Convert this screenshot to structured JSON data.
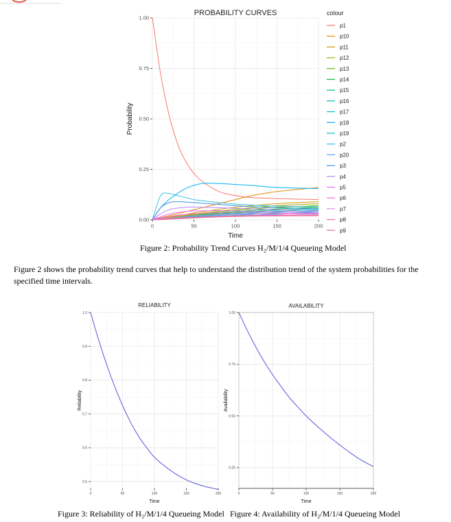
{
  "figure2": {
    "caption": "Figure 2: Probability Trend Curves H₂/M/1/4 Queueing Model",
    "chart": {
      "type": "line",
      "title": "PROBABILITY CURVES",
      "xlabel": "Time",
      "ylabel": "Probability",
      "xticks": [
        "0",
        "50",
        "100",
        "150",
        "200"
      ],
      "yticks": [
        "0.00",
        "0.25",
        "0.50",
        "0.75",
        "1.00"
      ],
      "legend_title": "colour",
      "legend": [
        "p1",
        "p10",
        "p11",
        "p12",
        "p13",
        "p14",
        "p15",
        "p16",
        "p17",
        "p18",
        "p19",
        "p2",
        "p20",
        "p3",
        "p4",
        "p5",
        "p6",
        "p7",
        "p8",
        "p9"
      ],
      "colors": [
        "#F8766D",
        "#E58700",
        "#C99800",
        "#A3A500",
        "#6BB100",
        "#00BA38",
        "#00BF7D",
        "#00C0AF",
        "#00BCD8",
        "#00B0F6",
        "#00BFC4",
        "#35C1E6",
        "#619CFF",
        "#3D8FE8",
        "#B983FF",
        "#E76BF3",
        "#FD61D1",
        "#D48CEA",
        "#FF67A4",
        "#F06C8A"
      ],
      "grid": true,
      "legend_position": "right"
    }
  },
  "paragraph": "Figure 2 shows the probability trend curves that help to understand the distribution trend of the system probabilities for the specified time intervals.",
  "figure3": {
    "caption": "Figure 3: Reliability of H₂/M/1/4 Queueing Model",
    "chart": {
      "type": "line",
      "title": "RELIABILITY",
      "xlabel": "Time",
      "ylabel": "Reliability",
      "xticks": [
        "0",
        "50",
        "100",
        "150",
        "200"
      ],
      "yticks": [
        "0.5",
        "0.6",
        "0.7",
        "0.8",
        "0.9",
        "1.0"
      ],
      "color": "#5555DD",
      "grid": true
    }
  },
  "figure4": {
    "caption": "Figure 4: Availability of H₂/M/1/4 Queueing Model",
    "chart": {
      "type": "line",
      "title": "AVAILABILITY",
      "xlabel": "Time",
      "ylabel": "Availability",
      "xticks": [
        "0",
        "50",
        "100",
        "150",
        "200"
      ],
      "yticks": [
        "0.25",
        "0.50",
        "0.75",
        "1.00"
      ],
      "color": "#5555DD",
      "grid": true
    }
  },
  "chart_data": [
    {
      "type": "line",
      "title": "PROBABILITY CURVES",
      "xlabel": "Time",
      "ylabel": "Probability",
      "xlim": [
        0,
        200
      ],
      "ylim": [
        0,
        1
      ],
      "x": [
        0,
        10,
        20,
        30,
        40,
        50,
        60,
        80,
        100,
        120,
        150,
        200
      ],
      "series": [
        {
          "name": "p1",
          "values": [
            1.0,
            0.72,
            0.52,
            0.38,
            0.29,
            0.23,
            0.19,
            0.14,
            0.12,
            0.11,
            0.105,
            0.1
          ]
        },
        {
          "name": "p10",
          "values": [
            0.0,
            0.01,
            0.02,
            0.03,
            0.04,
            0.05,
            0.06,
            0.08,
            0.1,
            0.12,
            0.14,
            0.16
          ]
        },
        {
          "name": "p11",
          "values": [
            0.0,
            0.006,
            0.012,
            0.02,
            0.027,
            0.034,
            0.04,
            0.052,
            0.062,
            0.07,
            0.08,
            0.09
          ]
        },
        {
          "name": "p12",
          "values": [
            0.0,
            0.005,
            0.01,
            0.016,
            0.022,
            0.028,
            0.033,
            0.043,
            0.052,
            0.06,
            0.07,
            0.08
          ]
        },
        {
          "name": "p13",
          "values": [
            0.0,
            0.004,
            0.009,
            0.014,
            0.019,
            0.024,
            0.029,
            0.038,
            0.046,
            0.053,
            0.062,
            0.07
          ]
        },
        {
          "name": "p14",
          "values": [
            0.0,
            0.004,
            0.008,
            0.012,
            0.017,
            0.021,
            0.025,
            0.033,
            0.04,
            0.046,
            0.054,
            0.062
          ]
        },
        {
          "name": "p15",
          "values": [
            0.0,
            0.003,
            0.007,
            0.011,
            0.015,
            0.019,
            0.022,
            0.029,
            0.035,
            0.041,
            0.048,
            0.056
          ]
        },
        {
          "name": "p16",
          "values": [
            0.0,
            0.003,
            0.006,
            0.01,
            0.013,
            0.016,
            0.02,
            0.026,
            0.031,
            0.036,
            0.043,
            0.05
          ]
        },
        {
          "name": "p17",
          "values": [
            0.0,
            0.003,
            0.005,
            0.008,
            0.011,
            0.014,
            0.017,
            0.022,
            0.027,
            0.031,
            0.037,
            0.044
          ]
        },
        {
          "name": "p18",
          "values": [
            0.0,
            0.06,
            0.1,
            0.13,
            0.155,
            0.17,
            0.18,
            0.18,
            0.175,
            0.17,
            0.16,
            0.155
          ]
        },
        {
          "name": "p19",
          "values": [
            0.0,
            0.002,
            0.004,
            0.007,
            0.009,
            0.012,
            0.014,
            0.018,
            0.022,
            0.026,
            0.031,
            0.037
          ]
        },
        {
          "name": "p2",
          "values": [
            0.0,
            0.12,
            0.13,
            0.12,
            0.11,
            0.1,
            0.095,
            0.085,
            0.078,
            0.073,
            0.068,
            0.064
          ]
        },
        {
          "name": "p20",
          "values": [
            0.0,
            0.002,
            0.004,
            0.006,
            0.008,
            0.01,
            0.012,
            0.016,
            0.019,
            0.022,
            0.026,
            0.03
          ]
        },
        {
          "name": "p3",
          "values": [
            0.0,
            0.06,
            0.085,
            0.09,
            0.088,
            0.085,
            0.082,
            0.076,
            0.07,
            0.065,
            0.06,
            0.055
          ]
        },
        {
          "name": "p4",
          "values": [
            0.0,
            0.03,
            0.05,
            0.058,
            0.062,
            0.063,
            0.062,
            0.06,
            0.057,
            0.054,
            0.05,
            0.046
          ]
        },
        {
          "name": "p5",
          "values": [
            0.0,
            0.015,
            0.028,
            0.036,
            0.041,
            0.044,
            0.045,
            0.045,
            0.044,
            0.042,
            0.04,
            0.038
          ]
        },
        {
          "name": "p6",
          "values": [
            0.0,
            0.008,
            0.016,
            0.022,
            0.027,
            0.03,
            0.032,
            0.034,
            0.034,
            0.034,
            0.033,
            0.032
          ]
        },
        {
          "name": "p7",
          "values": [
            0.0,
            0.004,
            0.009,
            0.013,
            0.017,
            0.02,
            0.022,
            0.025,
            0.026,
            0.027,
            0.027,
            0.027
          ]
        },
        {
          "name": "p8",
          "values": [
            0.0,
            0.002,
            0.005,
            0.008,
            0.011,
            0.013,
            0.015,
            0.018,
            0.02,
            0.021,
            0.022,
            0.023
          ]
        },
        {
          "name": "p9",
          "values": [
            0.0,
            0.001,
            0.003,
            0.005,
            0.007,
            0.009,
            0.011,
            0.014,
            0.016,
            0.018,
            0.019,
            0.02
          ]
        }
      ]
    },
    {
      "type": "line",
      "title": "RELIABILITY",
      "xlabel": "Time",
      "ylabel": "Reliability",
      "xlim": [
        0,
        200
      ],
      "ylim": [
        0.48,
        1.0
      ],
      "x": [
        0,
        10,
        20,
        30,
        40,
        50,
        60,
        70,
        80,
        90,
        100,
        120,
        140,
        160,
        180,
        200
      ],
      "series": [
        {
          "name": "Reliability",
          "values": [
            1.0,
            0.935,
            0.875,
            0.82,
            0.77,
            0.725,
            0.685,
            0.65,
            0.62,
            0.595,
            0.572,
            0.54,
            0.515,
            0.497,
            0.485,
            0.477
          ]
        }
      ]
    },
    {
      "type": "line",
      "title": "AVAILABILITY",
      "xlabel": "Time",
      "ylabel": "Availability",
      "xlim": [
        0,
        200
      ],
      "ylim": [
        0.15,
        1.0
      ],
      "x": [
        0,
        10,
        20,
        30,
        40,
        50,
        60,
        70,
        80,
        90,
        100,
        120,
        140,
        160,
        180,
        200
      ],
      "series": [
        {
          "name": "Availability",
          "values": [
            1.0,
            0.93,
            0.865,
            0.805,
            0.75,
            0.7,
            0.655,
            0.61,
            0.57,
            0.535,
            0.5,
            0.44,
            0.385,
            0.335,
            0.29,
            0.255
          ]
        }
      ]
    }
  ]
}
